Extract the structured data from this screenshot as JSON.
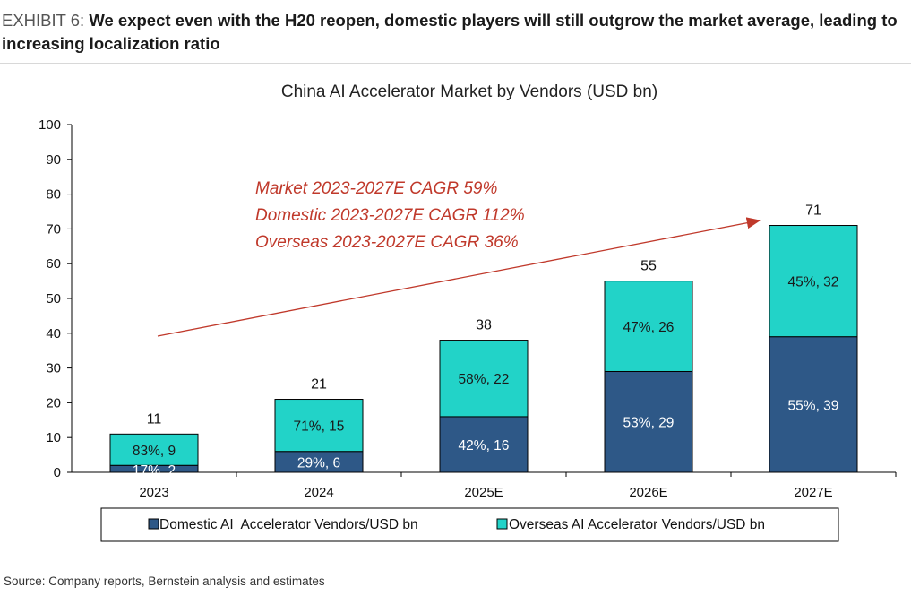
{
  "exhibit": {
    "label": "EXHIBIT 6:",
    "title": "We expect even with the H20 reopen, domestic players will still outgrow the market average, leading to increasing localization ratio"
  },
  "source": "Source: Company reports, Bernstein analysis and estimates",
  "colors": {
    "domestic": "#2e5887",
    "overseas": "#22d3c8",
    "annotation": "#c0392b"
  },
  "chart_data": {
    "type": "bar",
    "stacked": true,
    "title": "China AI Accelerator Market by Vendors (USD bn)",
    "categories": [
      "2023",
      "2024",
      "2025E",
      "2026E",
      "2027E"
    ],
    "series": [
      {
        "name": "Domestic AI  Accelerator Vendors/USD bn",
        "values": [
          2,
          6,
          16,
          29,
          39
        ],
        "labels": [
          "17%, 2",
          "29%, 6",
          "42%, 16",
          "53%, 29",
          "55%, 39"
        ]
      },
      {
        "name": "Overseas AI Accelerator Vendors/USD bn",
        "values": [
          9,
          15,
          22,
          26,
          32
        ],
        "labels": [
          "83%, 9",
          "71%, 15",
          "58%, 22",
          "47%, 26",
          "45%, 32"
        ]
      }
    ],
    "totals": [
      11,
      21,
      38,
      55,
      71
    ],
    "ylim": [
      0,
      100
    ],
    "yticks": [
      0,
      10,
      20,
      30,
      40,
      50,
      60,
      70,
      80,
      90,
      100
    ],
    "legend_position": "bottom",
    "annotations": [
      "Market 2023-2027E CAGR 59%",
      "Domestic 2023-2027E CAGR 112%",
      "Overseas 2023-2027E CAGR 36%"
    ]
  }
}
